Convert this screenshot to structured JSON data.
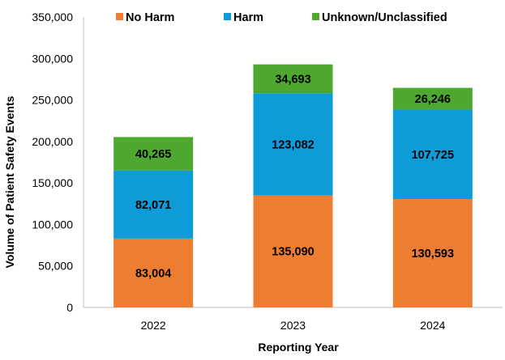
{
  "chart_data": {
    "type": "bar",
    "stacked": true,
    "categories": [
      "2022",
      "2023",
      "2024"
    ],
    "series": [
      {
        "name": "No Harm",
        "color": "#ED7D31",
        "values": [
          83004,
          135090,
          130593
        ],
        "labels": [
          "83,004",
          "135,090",
          "130,593"
        ]
      },
      {
        "name": "Harm",
        "color": "#0E9CD9",
        "values": [
          82071,
          123082,
          107725
        ],
        "labels": [
          "82,071",
          "123,082",
          "107,725"
        ]
      },
      {
        "name": "Unknown/Unclassified",
        "color": "#4EA72E",
        "values": [
          40265,
          34693,
          26246
        ],
        "labels": [
          "40,265",
          "34,693",
          "26,246"
        ]
      }
    ],
    "xlabel": "Reporting Year",
    "ylabel": "Volume of Patient Safety Events",
    "ylim": [
      0,
      350000
    ],
    "yticks": [
      0,
      50000,
      100000,
      150000,
      200000,
      250000,
      300000,
      350000
    ],
    "ytick_labels": [
      "0",
      "50,000",
      "100,000",
      "150,000",
      "200,000",
      "250,000",
      "300,000",
      "350,000"
    ],
    "legend_position": "top",
    "grid": false
  }
}
